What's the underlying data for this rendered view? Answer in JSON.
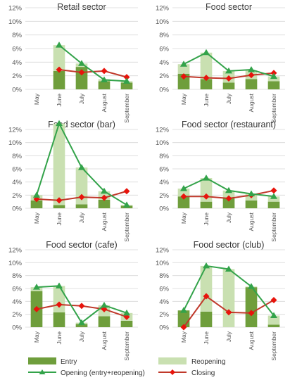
{
  "colors": {
    "entry": "#6f9e3c",
    "reopening": "#c9e0b1",
    "opening_line": "#33a34a",
    "closing_line": "#c0392b",
    "closing_marker": "#e8140c",
    "grid": "#d9d9d9"
  },
  "legend": {
    "entry": "Entry",
    "reopening": "Reopening",
    "opening": "Opening (entry+reopening)",
    "closing": "Closing"
  },
  "chart_data": [
    {
      "type": "bar",
      "title": "Retail sector",
      "categories": [
        "May",
        "June",
        "July",
        "August",
        "September"
      ],
      "ylim": [
        0,
        12
      ],
      "y_ticks": [
        "0%",
        "2%",
        "4%",
        "6%",
        "8%",
        "10%",
        "12%"
      ],
      "series": [
        {
          "name": "Entry",
          "values": [
            null,
            2.7,
            3.3,
            1.2,
            1.0
          ]
        },
        {
          "name": "Reopening",
          "values": [
            null,
            3.8,
            0.5,
            0.3,
            0.2
          ]
        },
        {
          "name": "Opening (entry+reopening)",
          "values": [
            null,
            6.5,
            3.8,
            1.4,
            1.2
          ]
        },
        {
          "name": "Closing",
          "values": [
            null,
            2.9,
            2.5,
            2.7,
            1.8
          ]
        }
      ]
    },
    {
      "type": "bar",
      "title": "Food sector",
      "categories": [
        "May",
        "June",
        "July",
        "August",
        "September"
      ],
      "ylim": [
        0,
        12
      ],
      "y_ticks": [
        "0%",
        "2%",
        "4%",
        "6%",
        "8%",
        "10%",
        "12%"
      ],
      "series": [
        {
          "name": "Entry",
          "values": [
            2.3,
            1.5,
            1.0,
            1.5,
            1.2
          ]
        },
        {
          "name": "Reopening",
          "values": [
            1.4,
            3.9,
            1.7,
            1.3,
            0.7
          ]
        },
        {
          "name": "Opening (entry+reopening)",
          "values": [
            3.7,
            5.4,
            2.7,
            2.9,
            1.9
          ]
        },
        {
          "name": "Closing",
          "values": [
            1.9,
            1.7,
            1.6,
            2.1,
            2.4
          ]
        }
      ]
    },
    {
      "type": "bar",
      "title": "Food sector (bar)",
      "categories": [
        "May",
        "June",
        "July",
        "August",
        "September"
      ],
      "ylim": [
        0,
        12
      ],
      "y_ticks": [
        "0%",
        "2%",
        "4%",
        "6%",
        "8%",
        "10%",
        "12%"
      ],
      "series": [
        {
          "name": "Entry",
          "values": [
            1.2,
            0.5,
            0.6,
            1.3,
            0.4
          ]
        },
        {
          "name": "Reopening",
          "values": [
            0.8,
            12.4,
            5.6,
            1.3,
            0.1
          ]
        },
        {
          "name": "Opening (entry+reopening)",
          "values": [
            2.0,
            12.9,
            6.2,
            2.6,
            0.5
          ]
        },
        {
          "name": "Closing",
          "values": [
            1.4,
            1.2,
            1.7,
            1.6,
            2.6
          ]
        }
      ]
    },
    {
      "type": "bar",
      "title": "Food sector (restaurant)",
      "categories": [
        "May",
        "June",
        "July",
        "August",
        "September"
      ],
      "ylim": [
        0,
        12
      ],
      "y_ticks": [
        "0%",
        "2%",
        "4%",
        "6%",
        "8%",
        "10%",
        "12%"
      ],
      "series": [
        {
          "name": "Entry",
          "values": [
            1.8,
            1.0,
            1.6,
            1.2,
            1.0
          ]
        },
        {
          "name": "Reopening",
          "values": [
            1.2,
            3.6,
            1.1,
            1.0,
            0.8
          ]
        },
        {
          "name": "Opening (entry+reopening)",
          "values": [
            3.0,
            4.6,
            2.7,
            2.2,
            1.8
          ]
        },
        {
          "name": "Closing",
          "values": [
            1.8,
            1.8,
            1.5,
            2.0,
            2.7
          ]
        }
      ]
    },
    {
      "type": "bar",
      "title": "Food sector (cafe)",
      "categories": [
        "May",
        "June",
        "July",
        "August",
        "September"
      ],
      "ylim": [
        0,
        12
      ],
      "y_ticks": [
        "0%",
        "2%",
        "4%",
        "6%",
        "8%",
        "10%",
        "12%"
      ],
      "series": [
        {
          "name": "Entry",
          "values": [
            5.6,
            2.3,
            0.5,
            1.7,
            1.0
          ]
        },
        {
          "name": "Reopening",
          "values": [
            0.6,
            4.1,
            0.2,
            1.7,
            1.2
          ]
        },
        {
          "name": "Opening (entry+reopening)",
          "values": [
            6.2,
            6.4,
            0.7,
            3.4,
            2.2
          ]
        },
        {
          "name": "Closing",
          "values": [
            2.8,
            3.5,
            3.3,
            2.8,
            1.6
          ]
        }
      ]
    },
    {
      "type": "bar",
      "title": "Food sector (club)",
      "categories": [
        "May",
        "June",
        "July",
        "August",
        "September"
      ],
      "ylim": [
        0,
        12
      ],
      "y_ticks": [
        "0%",
        "2%",
        "4%",
        "6%",
        "8%",
        "10%",
        "12%"
      ],
      "series": [
        {
          "name": "Entry",
          "values": [
            2.6,
            2.4,
            0.0,
            6.2,
            0.4
          ]
        },
        {
          "name": "Reopening",
          "values": [
            0.0,
            7.1,
            9.0,
            0.1,
            1.4
          ]
        },
        {
          "name": "Opening (entry+reopening)",
          "values": [
            2.6,
            9.5,
            9.0,
            6.3,
            1.8
          ]
        },
        {
          "name": "Closing",
          "values": [
            0.0,
            4.8,
            2.3,
            2.2,
            4.2
          ]
        }
      ]
    }
  ]
}
